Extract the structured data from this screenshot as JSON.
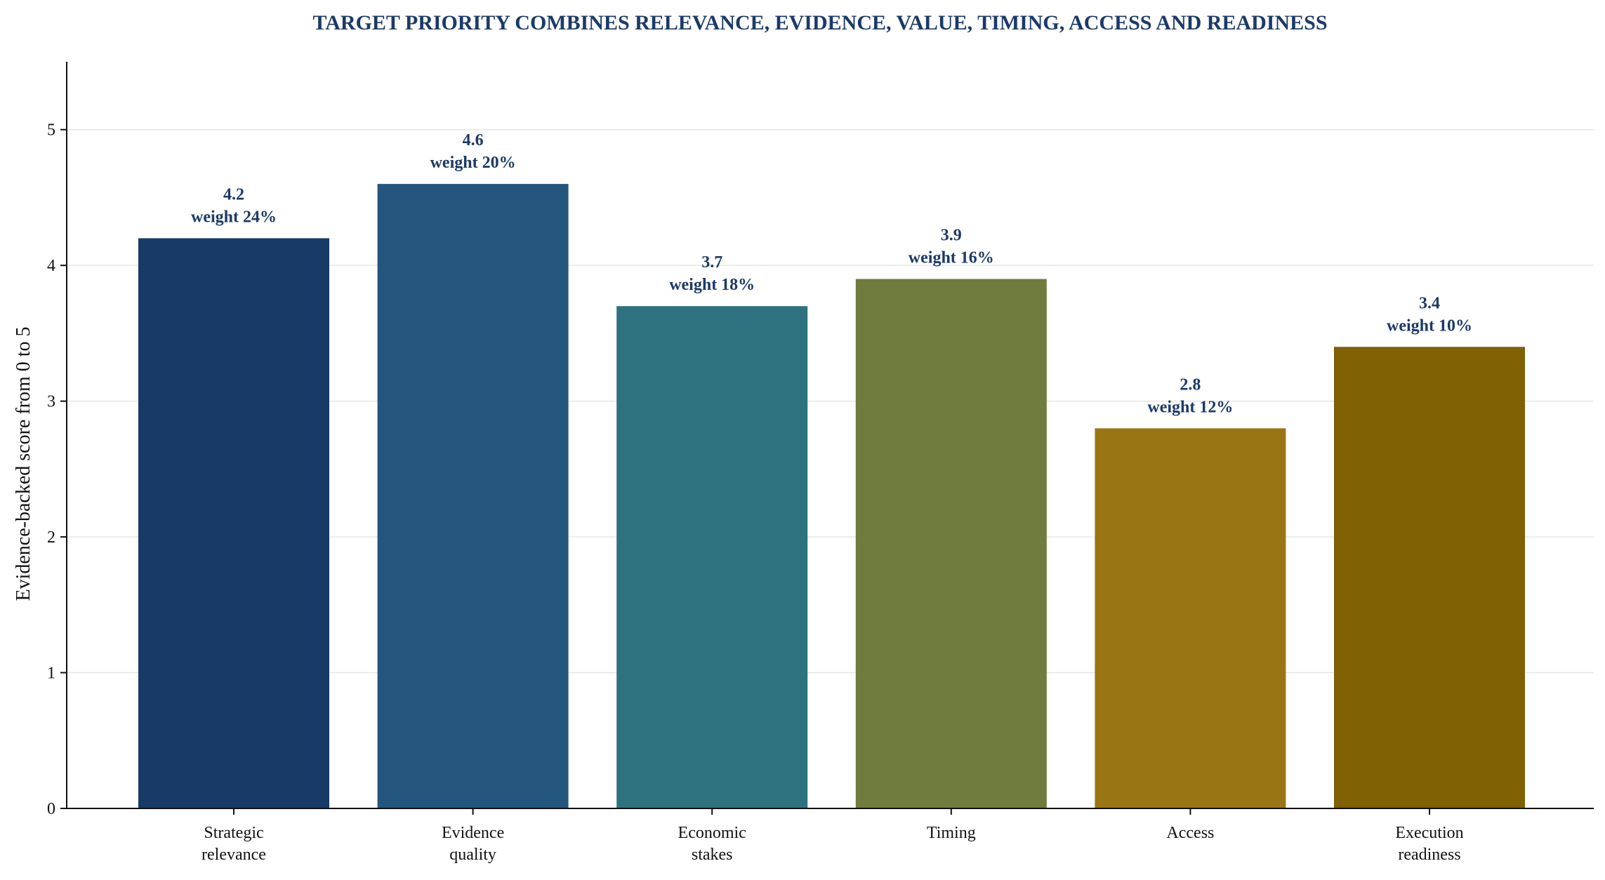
{
  "chart_data": {
    "type": "bar",
    "title": "TARGET PRIORITY COMBINES RELEVANCE, EVIDENCE, VALUE, TIMING, ACCESS AND READINESS",
    "xlabel": "",
    "ylabel": "Evidence-backed score from 0 to 5",
    "ylim": [
      0,
      5.5
    ],
    "yticks": [
      "0",
      "1",
      "2",
      "3",
      "4",
      "5"
    ],
    "grid": "horizontal",
    "categories": [
      [
        "Strategic",
        "relevance"
      ],
      [
        "Evidence",
        "quality"
      ],
      [
        "Economic",
        "stakes"
      ],
      [
        "Timing"
      ],
      [
        "Access"
      ],
      [
        "Execution",
        "readiness"
      ]
    ],
    "values": [
      4.2,
      4.6,
      3.7,
      3.9,
      2.8,
      3.4
    ],
    "value_labels": [
      "4.2",
      "4.6",
      "3.7",
      "3.9",
      "2.8",
      "3.4"
    ],
    "weight_labels": [
      "weight 24%",
      "weight 20%",
      "weight 18%",
      "weight 16%",
      "weight 12%",
      "weight 10%"
    ],
    "colors": [
      "#173a66",
      "#24557d",
      "#2e727f",
      "#6f7c3e",
      "#9a7514",
      "#7f6002"
    ]
  }
}
